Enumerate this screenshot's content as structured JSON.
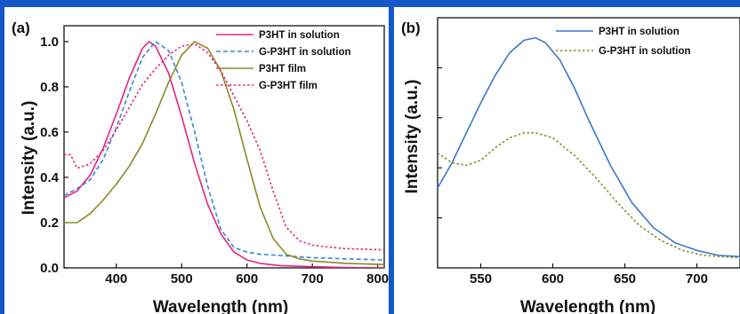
{
  "chart_data": [
    {
      "panel": "(a)",
      "type": "line",
      "xlabel": "Wavelength (nm)",
      "ylabel": "Intensity (a.u.)",
      "xlim": [
        320,
        810
      ],
      "ylim": [
        0,
        1.07
      ],
      "xticks": [
        400,
        500,
        600,
        700,
        800
      ],
      "yticks": [
        0.0,
        0.2,
        0.4,
        0.6,
        0.8,
        1.0
      ],
      "ytick_labels": [
        "0.0",
        "0.2",
        "0.4",
        "0.6",
        "0.8",
        "1.0"
      ],
      "legend_position": "top-right",
      "series": [
        {
          "name": "P3HT in solution",
          "color": "#e8247c",
          "dash": "solid",
          "x": [
            320,
            340,
            360,
            380,
            400,
            420,
            440,
            450,
            460,
            480,
            500,
            520,
            540,
            560,
            580,
            600,
            620,
            650,
            700,
            750,
            810
          ],
          "y": [
            0.31,
            0.34,
            0.41,
            0.53,
            0.68,
            0.84,
            0.97,
            1.0,
            0.98,
            0.86,
            0.67,
            0.46,
            0.28,
            0.15,
            0.07,
            0.035,
            0.02,
            0.01,
            0.005,
            0.002,
            0.0
          ]
        },
        {
          "name": "G-P3HT in solution",
          "color": "#3a86d8",
          "dash": "dashed",
          "x": [
            320,
            340,
            360,
            380,
            400,
            420,
            440,
            460,
            480,
            500,
            520,
            540,
            560,
            580,
            600,
            620,
            650,
            700,
            750,
            810
          ],
          "y": [
            0.32,
            0.35,
            0.39,
            0.48,
            0.62,
            0.78,
            0.93,
            1.0,
            0.96,
            0.82,
            0.6,
            0.36,
            0.17,
            0.09,
            0.07,
            0.06,
            0.055,
            0.045,
            0.04,
            0.035
          ]
        },
        {
          "name": "P3HT film",
          "color": "#8a8a2a",
          "dash": "solid",
          "x": [
            320,
            340,
            360,
            380,
            400,
            420,
            440,
            460,
            480,
            500,
            520,
            540,
            560,
            580,
            600,
            620,
            640,
            660,
            680,
            700,
            750,
            810
          ],
          "y": [
            0.2,
            0.2,
            0.24,
            0.3,
            0.37,
            0.45,
            0.55,
            0.68,
            0.82,
            0.94,
            1.0,
            0.97,
            0.87,
            0.7,
            0.48,
            0.27,
            0.13,
            0.06,
            0.04,
            0.03,
            0.02,
            0.015
          ]
        },
        {
          "name": "G-P3HT film",
          "color": "#e8247c",
          "dash": "dotted",
          "x": [
            320,
            330,
            340,
            360,
            380,
            400,
            420,
            440,
            460,
            480,
            500,
            520,
            540,
            560,
            580,
            600,
            620,
            640,
            660,
            680,
            700,
            750,
            810
          ],
          "y": [
            0.5,
            0.5,
            0.44,
            0.46,
            0.52,
            0.61,
            0.71,
            0.81,
            0.88,
            0.94,
            0.98,
            0.99,
            0.95,
            0.87,
            0.76,
            0.65,
            0.52,
            0.34,
            0.18,
            0.12,
            0.1,
            0.085,
            0.08
          ]
        }
      ]
    },
    {
      "panel": "(b)",
      "type": "line",
      "xlabel": "Wavelength (nm)",
      "ylabel": "Intensity (a.u.)",
      "xlim": [
        520,
        730
      ],
      "ylim": [
        0,
        1.0
      ],
      "xticks": [
        550,
        600,
        650,
        700
      ],
      "yticks_labeled": false,
      "legend_position": "top-right",
      "series": [
        {
          "name": "P3HT in solution",
          "color": "#3a78cc",
          "dash": "solid",
          "x": [
            520,
            530,
            540,
            550,
            560,
            570,
            580,
            588,
            595,
            605,
            615,
            625,
            640,
            655,
            670,
            685,
            700,
            715,
            730
          ],
          "y": [
            0.32,
            0.42,
            0.54,
            0.66,
            0.77,
            0.86,
            0.91,
            0.92,
            0.9,
            0.83,
            0.72,
            0.59,
            0.41,
            0.26,
            0.16,
            0.1,
            0.07,
            0.05,
            0.045
          ]
        },
        {
          "name": "G-P3HT in solution",
          "color": "#8a8a2a",
          "dash": "dotted",
          "x": [
            520,
            530,
            540,
            550,
            560,
            570,
            580,
            588,
            600,
            615,
            630,
            645,
            660,
            675,
            690,
            705,
            730
          ],
          "y": [
            0.46,
            0.42,
            0.41,
            0.43,
            0.48,
            0.52,
            0.54,
            0.54,
            0.52,
            0.45,
            0.36,
            0.26,
            0.17,
            0.11,
            0.07,
            0.05,
            0.04
          ]
        }
      ]
    }
  ]
}
